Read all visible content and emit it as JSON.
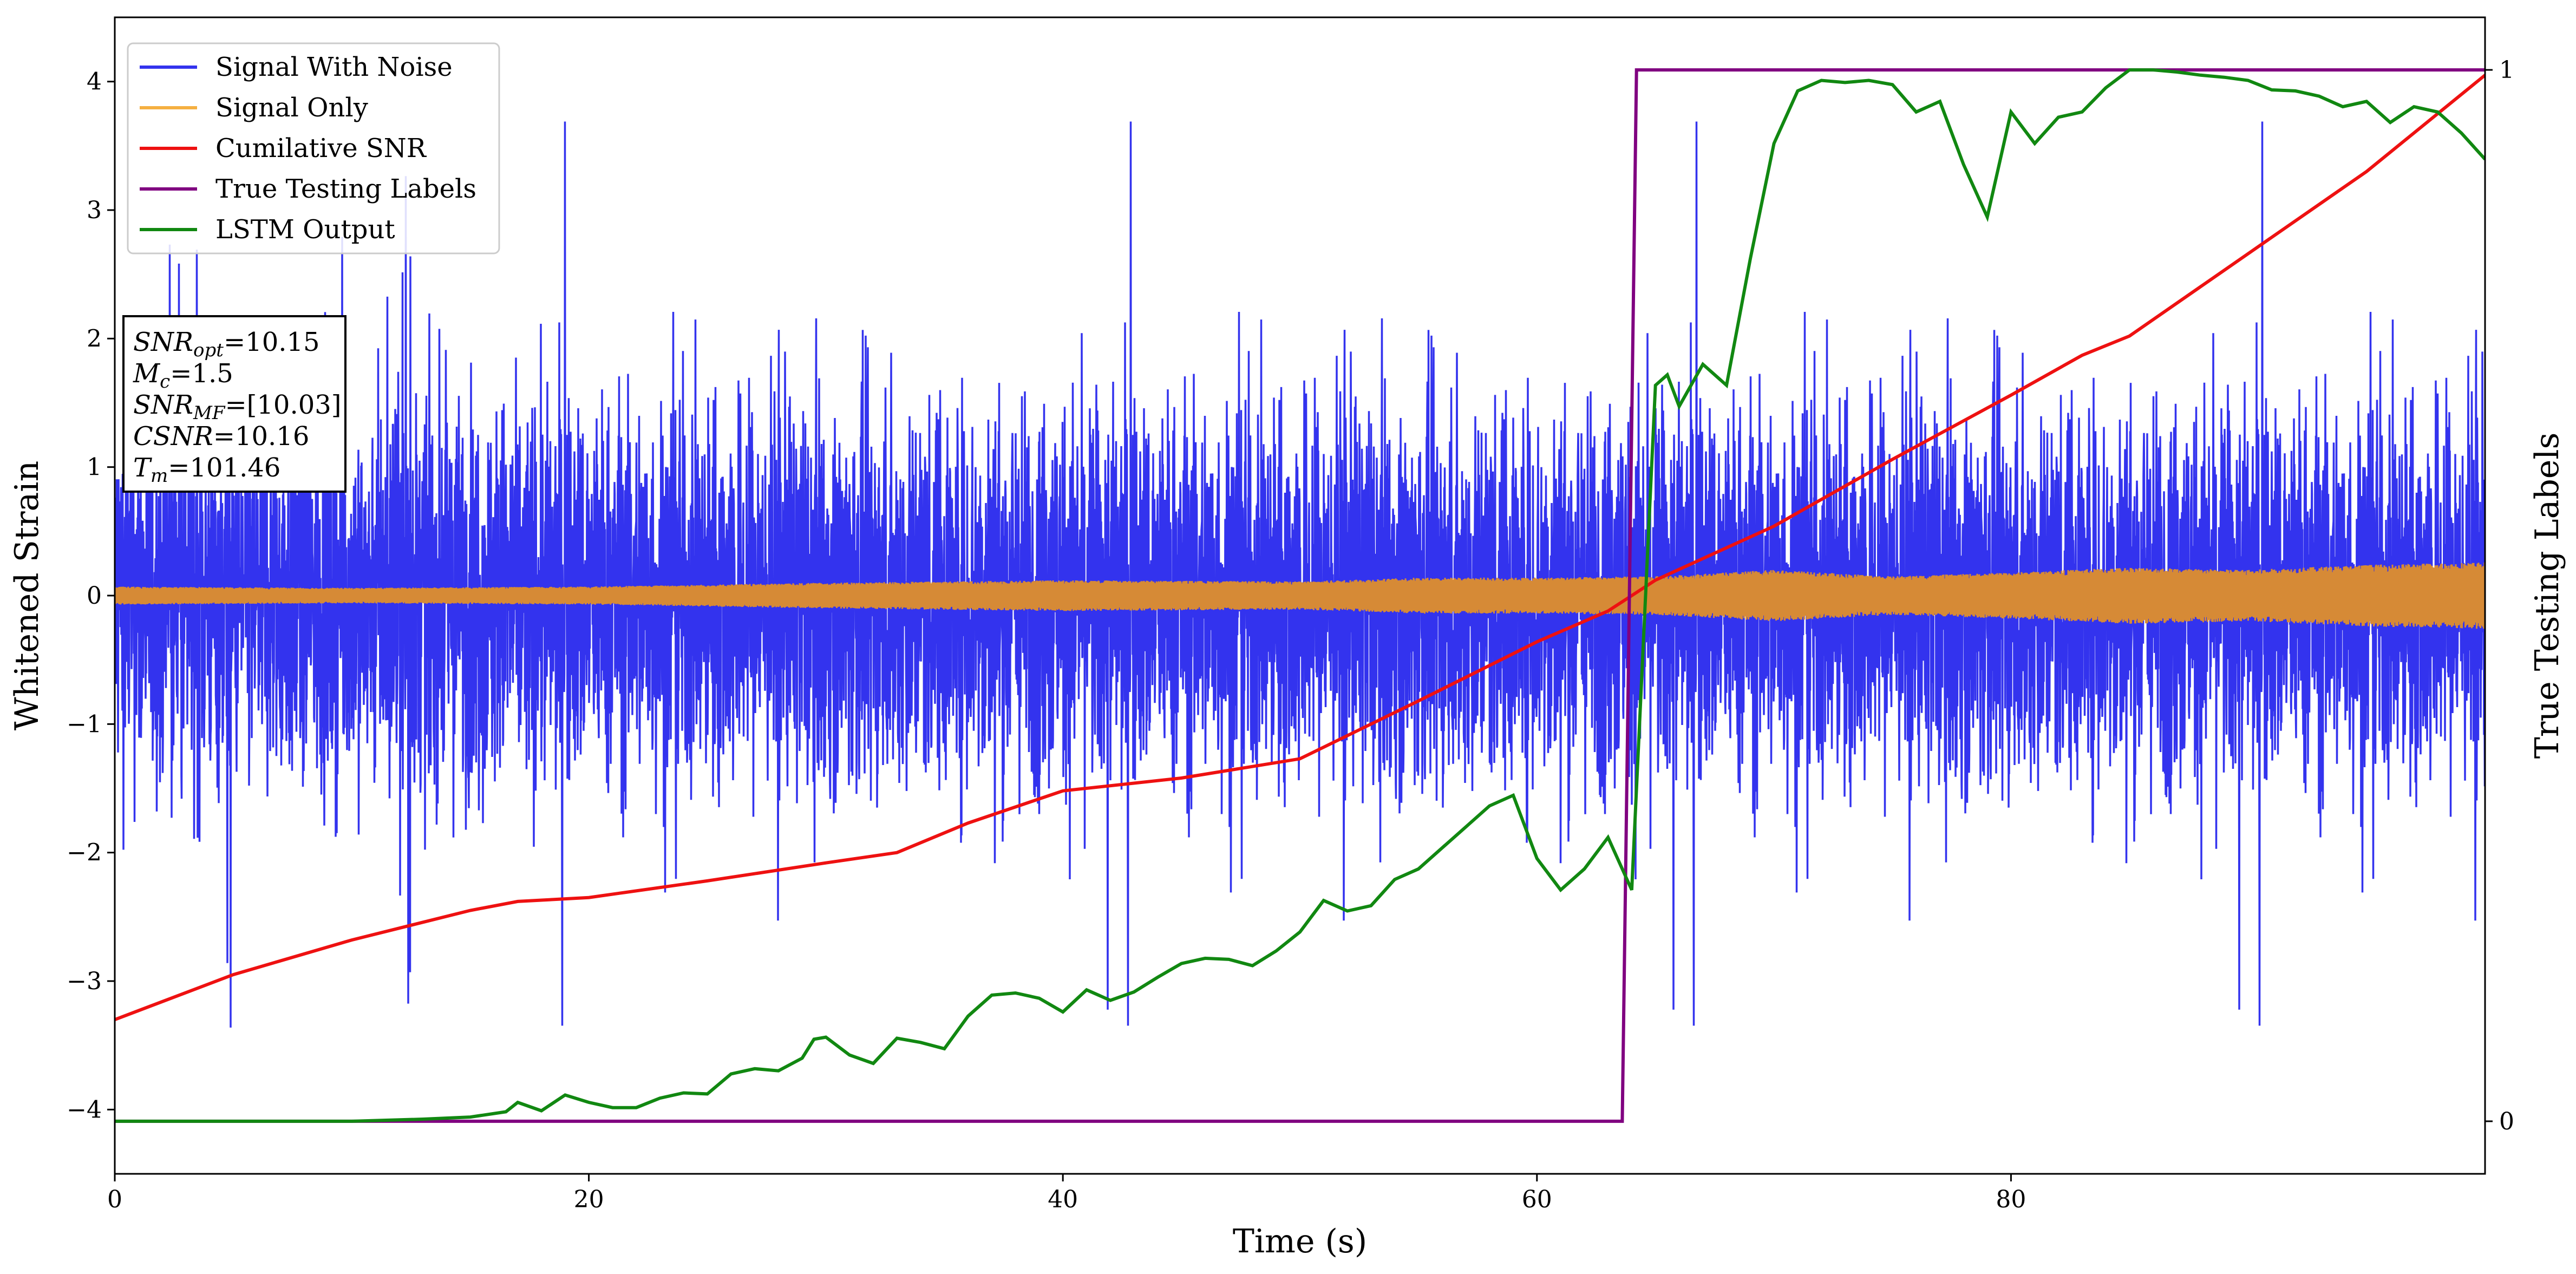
{
  "chart_data": {
    "type": "line",
    "title": "",
    "xlabel": "Time (s)",
    "ylabel": "Whitened Strain",
    "ylabel_right": "True Testing Labels",
    "xlim": [
      0,
      100
    ],
    "ylim": [
      -4.5,
      4.5
    ],
    "ylim_right": [
      -0.05,
      1.05
    ],
    "xticks": [
      0,
      20,
      40,
      60,
      80
    ],
    "yticks": [
      -4,
      -3,
      -2,
      -1,
      0,
      1,
      2,
      3,
      4
    ],
    "yticks_right": [
      0,
      1
    ],
    "legend_placement": "top-left",
    "grid": false,
    "colors": {
      "signal_with_noise": "#3333ee",
      "signal_only": "#f5b041",
      "signal_only_dense": "#d68a36",
      "cumulative_snr": "#ee1111",
      "true_labels": "#800080",
      "lstm_output": "#118811"
    },
    "legend": [
      "Signal With Noise",
      "Signal Only",
      "Cumilative SNR",
      "True Testing Labels",
      "LSTM Output"
    ],
    "series": [
      {
        "name": "Signal With Noise",
        "axis": "left",
        "note_values": "dense noise band roughly symmetric about 0",
        "envelope_typical": [
          -1.6,
          1.6
        ],
        "x": [
          0,
          100
        ],
        "envelope_min": -4.1,
        "envelope_max": 4.05
      },
      {
        "name": "Signal Only",
        "axis": "left",
        "x": [
          0,
          10,
          20,
          30,
          40,
          50,
          55,
          60,
          65,
          70,
          75,
          80,
          85,
          90,
          95,
          100
        ],
        "amplitude": [
          0.07,
          0.06,
          0.07,
          0.1,
          0.12,
          0.11,
          0.14,
          0.14,
          0.15,
          0.2,
          0.15,
          0.18,
          0.22,
          0.2,
          0.24,
          0.26
        ]
      },
      {
        "name": "Cumilative SNR",
        "axis": "left",
        "x": [
          0,
          5,
          10,
          15,
          17,
          20,
          25,
          30,
          33,
          36,
          40,
          45,
          50,
          55,
          60,
          63,
          65,
          70,
          75,
          80,
          83,
          85,
          90,
          95,
          100
        ],
        "values": [
          -3.3,
          -2.95,
          -2.68,
          -2.45,
          -2.38,
          -2.35,
          -2.22,
          -2.08,
          -2.0,
          -1.77,
          -1.52,
          -1.42,
          -1.27,
          -0.82,
          -0.36,
          -0.12,
          0.12,
          0.54,
          1.06,
          1.56,
          1.87,
          2.02,
          2.66,
          3.3,
          4.05
        ]
      },
      {
        "name": "True Testing Labels",
        "axis": "right",
        "x": [
          0,
          63.6,
          64.2,
          100
        ],
        "values": [
          0,
          0,
          1,
          1
        ]
      },
      {
        "name": "LSTM Output",
        "axis": "right",
        "x": [
          0,
          10,
          13,
          15,
          16.5,
          17,
          18,
          19,
          20,
          21,
          22,
          23,
          24,
          25,
          26,
          27,
          28,
          29,
          29.5,
          30,
          31,
          32,
          33,
          34,
          35,
          36,
          37,
          38,
          39,
          40,
          41,
          42,
          43,
          44,
          45,
          46,
          47,
          48,
          49,
          50,
          51,
          52,
          53,
          54,
          55,
          56,
          57,
          58,
          59,
          60,
          61,
          62,
          63,
          64,
          65,
          65.5,
          66,
          67,
          68,
          69,
          70,
          71,
          72,
          73,
          74,
          75,
          76,
          77,
          78,
          79,
          80,
          81,
          82,
          83,
          84,
          85,
          86,
          87,
          88,
          89,
          90,
          91,
          92,
          93,
          94,
          95,
          96,
          97,
          98,
          99,
          100
        ],
        "values": [
          0.0,
          0.0,
          0.002,
          0.004,
          0.009,
          0.018,
          0.01,
          0.025,
          0.018,
          0.013,
          0.013,
          0.022,
          0.027,
          0.026,
          0.045,
          0.05,
          0.048,
          0.06,
          0.078,
          0.08,
          0.063,
          0.055,
          0.079,
          0.075,
          0.069,
          0.1,
          0.12,
          0.122,
          0.117,
          0.104,
          0.125,
          0.115,
          0.123,
          0.137,
          0.15,
          0.155,
          0.154,
          0.148,
          0.162,
          0.18,
          0.21,
          0.2,
          0.205,
          0.23,
          0.24,
          0.26,
          0.28,
          0.3,
          0.31,
          0.25,
          0.22,
          0.24,
          0.27,
          0.22,
          0.7,
          0.71,
          0.68,
          0.72,
          0.7,
          0.82,
          0.93,
          0.98,
          0.99,
          0.988,
          0.99,
          0.986,
          0.96,
          0.97,
          0.91,
          0.86,
          0.96,
          0.93,
          0.955,
          0.96,
          0.983,
          1.0,
          1.0,
          0.998,
          0.995,
          0.993,
          0.99,
          0.981,
          0.98,
          0.975,
          0.965,
          0.97,
          0.95,
          0.965,
          0.96,
          0.94,
          0.915
        ]
      }
    ]
  },
  "info_box": {
    "lines": [
      {
        "base": "SNR",
        "sub": "opt",
        "value": "=10.15"
      },
      {
        "base": "M",
        "sub": "c",
        "value": "=1.5"
      },
      {
        "base": "SNR",
        "sub": "MF",
        "value": "=[10.03]"
      },
      {
        "base": "CSNR",
        "sub": "",
        "value": "=10.16"
      },
      {
        "base": "T",
        "sub": "m",
        "value": "=101.46"
      }
    ]
  }
}
